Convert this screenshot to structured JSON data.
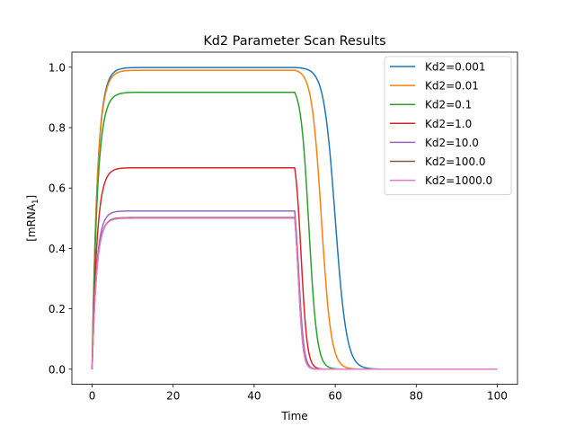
{
  "chart_data": {
    "type": "line",
    "title": "Kd2 Parameter Scan Results",
    "xlabel": "Time",
    "ylabel_main": "[mRNA",
    "ylabel_sub": "1",
    "ylabel_close": "]",
    "xlim": [
      -5,
      105
    ],
    "ylim": [
      -0.05,
      1.05
    ],
    "x_ticks": [
      0,
      20,
      40,
      60,
      80,
      100
    ],
    "y_ticks": [
      0.0,
      0.2,
      0.4,
      0.6,
      0.8,
      1.0
    ],
    "x_tick_labels": [
      "0",
      "20",
      "40",
      "60",
      "80",
      "100"
    ],
    "y_tick_labels": [
      "0.0",
      "0.2",
      "0.4",
      "0.6",
      "0.8",
      "1.0"
    ],
    "grid": false,
    "legend_position": "top-right",
    "series": [
      {
        "name": "Kd2=0.001",
        "color": "#1f77b4",
        "plateau": 0.999,
        "rise_tau": 1.3,
        "half_decay_time": 60.0,
        "decay_width": 1.4
      },
      {
        "name": "Kd2=0.01",
        "color": "#ff7f0e",
        "plateau": 0.99,
        "rise_tau": 1.3,
        "half_decay_time": 56.6,
        "decay_width": 1.2
      },
      {
        "name": "Kd2=0.1",
        "color": "#2ca02c",
        "plateau": 0.917,
        "rise_tau": 1.3,
        "half_decay_time": 53.5,
        "decay_width": 1.0
      },
      {
        "name": "Kd2=1.0",
        "color": "#d62728",
        "plateau": 0.667,
        "rise_tau": 1.2,
        "half_decay_time": 51.6,
        "decay_width": 0.75
      },
      {
        "name": "Kd2=10.0",
        "color": "#9467bd",
        "plateau": 0.524,
        "rise_tau": 1.1,
        "half_decay_time": 51.0,
        "decay_width": 0.65
      },
      {
        "name": "Kd2=100.0",
        "color": "#8c564b",
        "plateau": 0.502,
        "rise_tau": 1.1,
        "half_decay_time": 50.9,
        "decay_width": 0.6
      },
      {
        "name": "Kd2=1000.0",
        "color": "#e377c2",
        "plateau": 0.5,
        "rise_tau": 1.1,
        "half_decay_time": 50.9,
        "decay_width": 0.6
      }
    ]
  }
}
